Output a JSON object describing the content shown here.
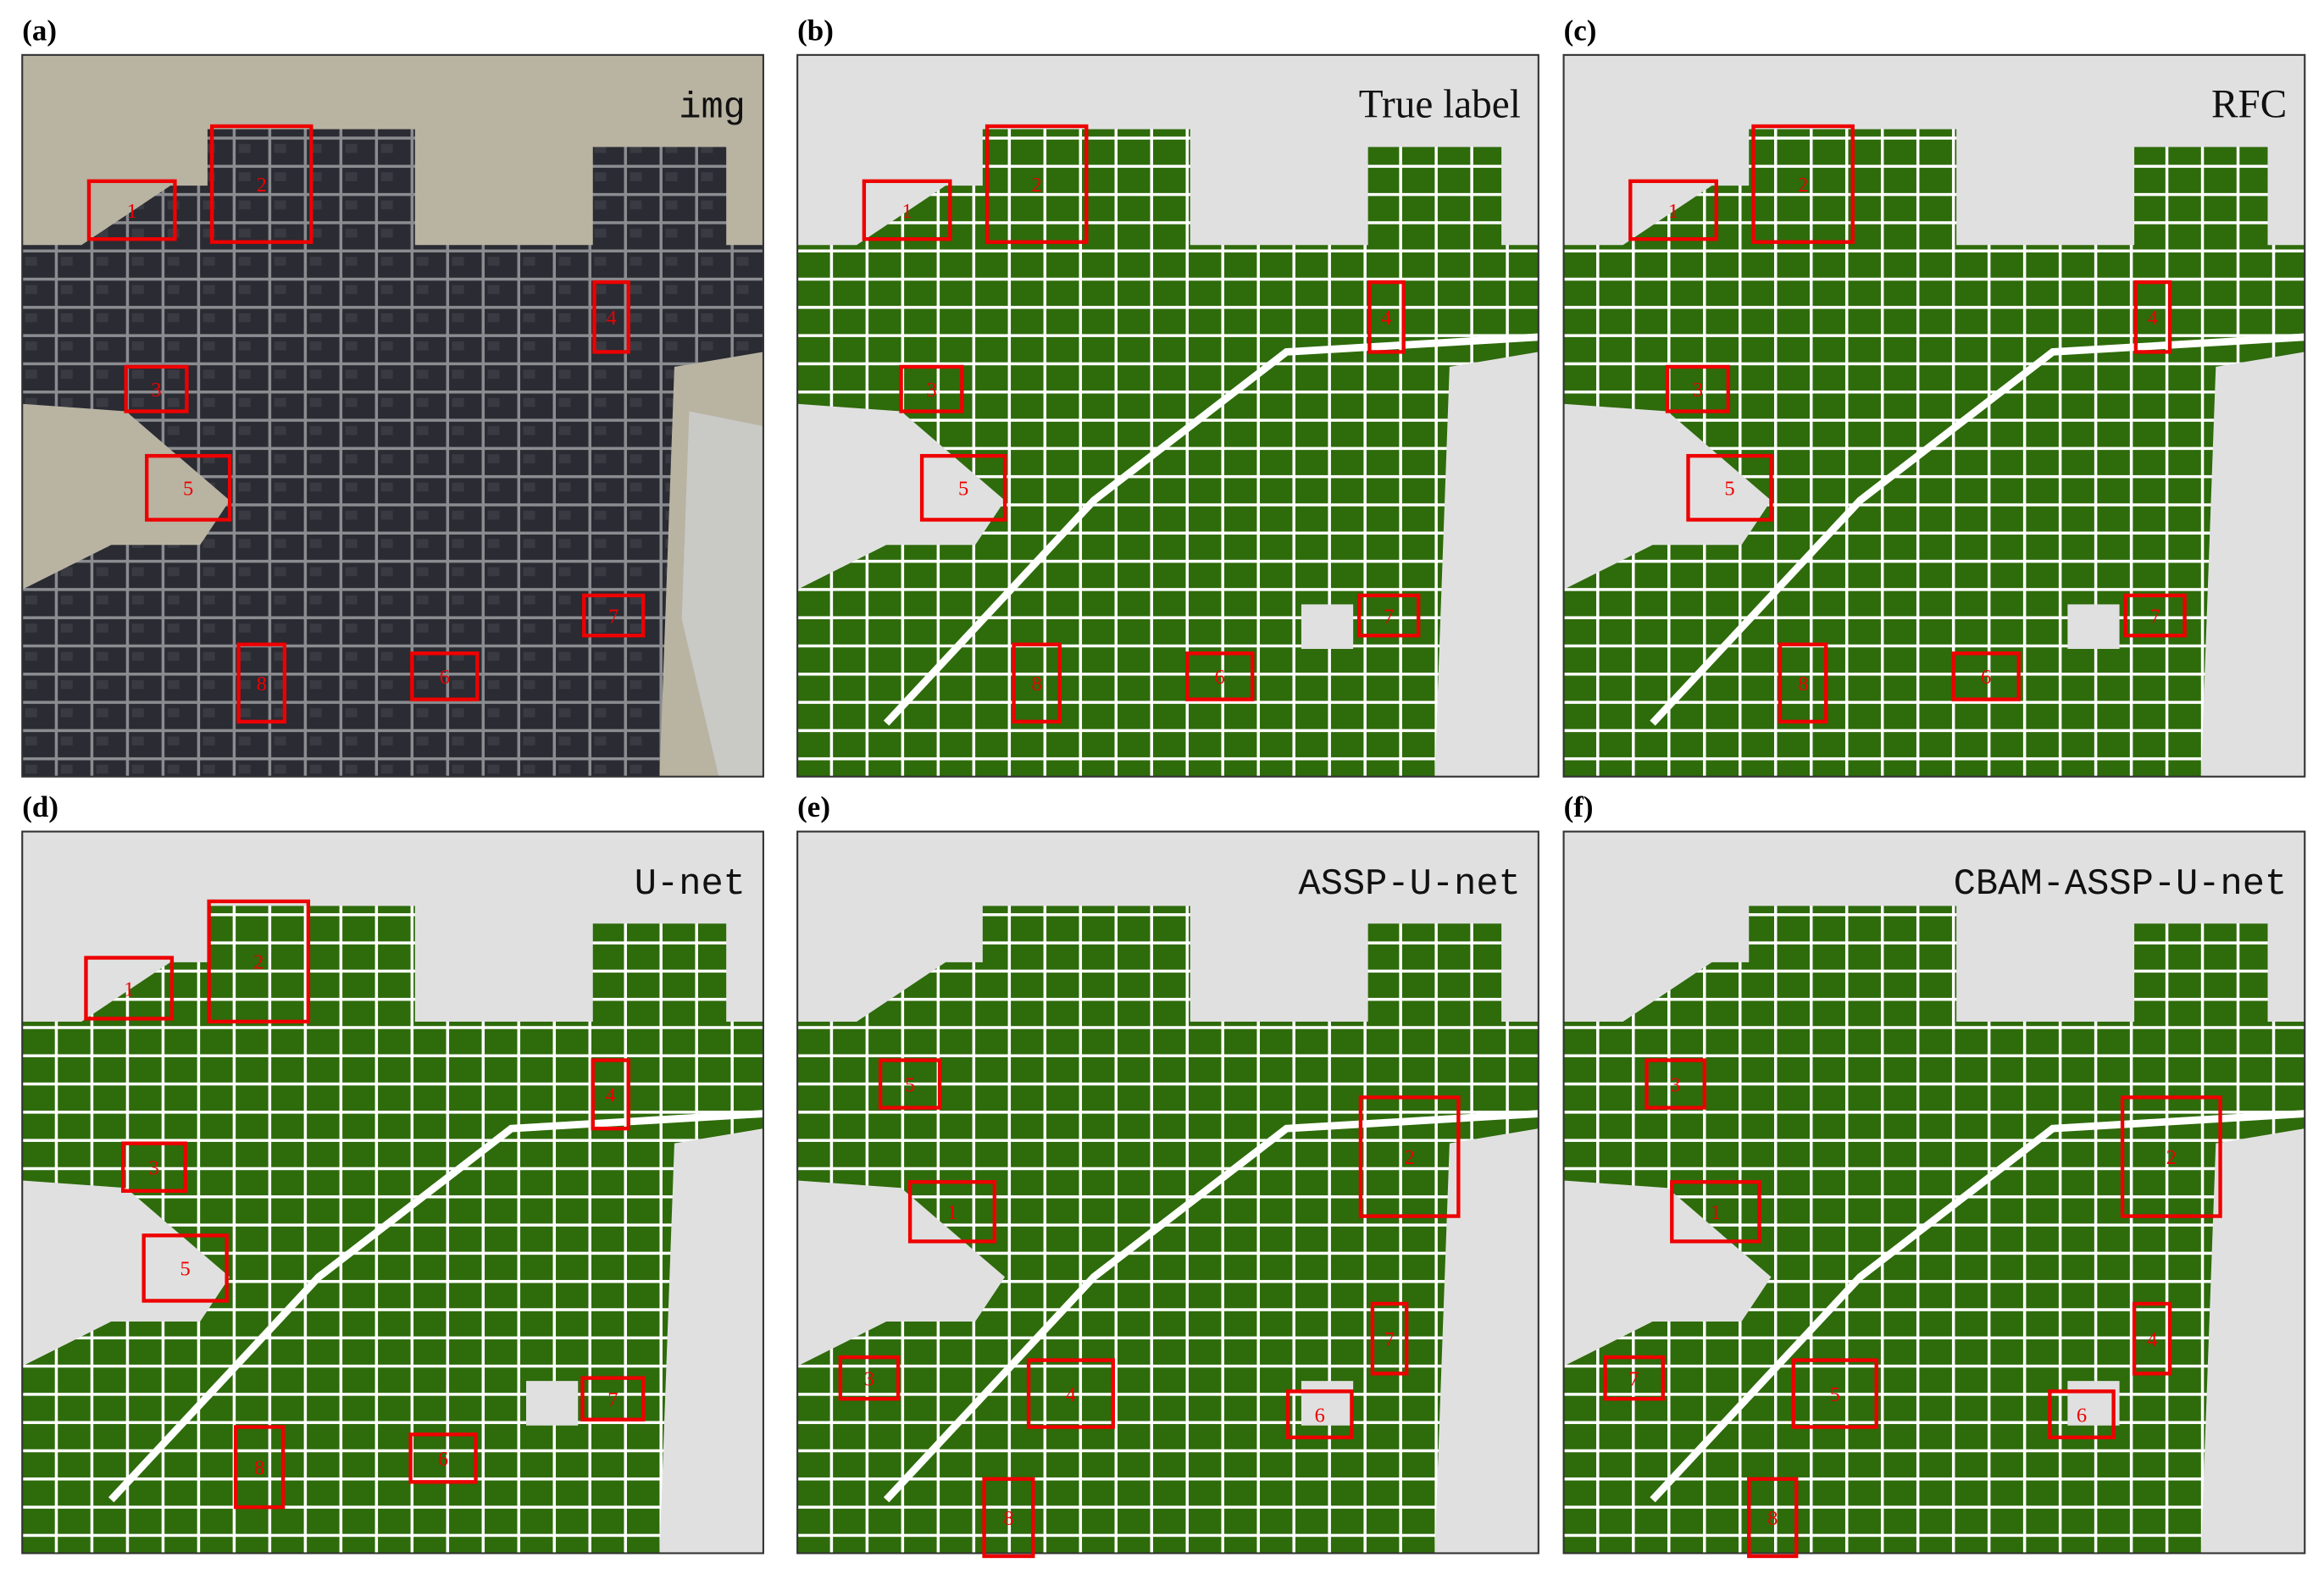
{
  "panels": [
    {
      "letter": "(a)",
      "title": "img",
      "boxes": [
        "1",
        "2",
        "3",
        "4",
        "5",
        "6",
        "7",
        "8"
      ]
    },
    {
      "letter": "(b)",
      "title": "True label",
      "boxes": [
        "1",
        "2",
        "3",
        "4",
        "5",
        "6",
        "7",
        "8"
      ]
    },
    {
      "letter": "(c)",
      "title": "RFC",
      "boxes": [
        "1",
        "2",
        "3",
        "4",
        "5",
        "6",
        "7",
        "8"
      ]
    },
    {
      "letter": "(d)",
      "title": "U-net",
      "boxes": [
        "1",
        "2",
        "3",
        "4",
        "5",
        "6",
        "7",
        "8"
      ]
    },
    {
      "letter": "(e)",
      "title": "ASSP-U-net",
      "boxes": [
        "5",
        "1",
        "2",
        "7",
        "3",
        "4",
        "6",
        "8"
      ]
    },
    {
      "letter": "(f)",
      "title": "CBAM-ASSP-U-net",
      "boxes": [
        "3",
        "1",
        "2",
        "4",
        "7",
        "5",
        "6",
        "8"
      ]
    }
  ]
}
